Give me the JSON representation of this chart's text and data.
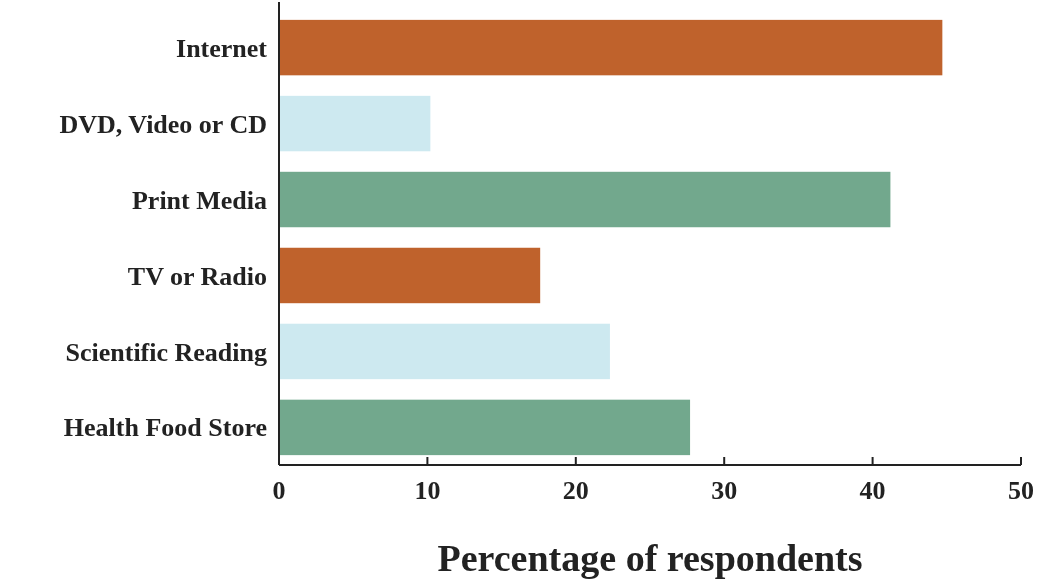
{
  "chart_data": {
    "type": "bar",
    "orientation": "horizontal",
    "categories": [
      "Internet",
      "DVD, Video or CD",
      "Print Media",
      "TV or Radio",
      "Scientific Reading",
      "Health Food Store"
    ],
    "values": [
      44.7,
      10.2,
      41.2,
      17.6,
      22.3,
      27.7
    ],
    "colors": [
      "#bf622c",
      "#cde9f0",
      "#72a88d",
      "#bf622c",
      "#cde9f0",
      "#72a88d"
    ],
    "xlim": [
      0,
      50
    ],
    "xticks": [
      0,
      10,
      20,
      30,
      40,
      50
    ],
    "xlabel": "Percentage of respondents"
  }
}
